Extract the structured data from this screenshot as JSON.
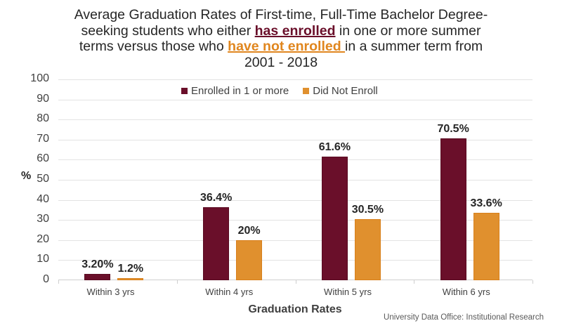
{
  "chart_data": {
    "type": "bar",
    "title": "Average Graduation Rates of First-time, Full-Time Bachelor Degree-seeking students who either has enrolled in one or more summer terms versus those who have not enrolled in a summer term from 2001 - 2018",
    "title_parts": {
      "line1": "Average Graduation Rates of First-time, Full-Time Bachelor Degree-",
      "line2_pre": "seeking students who either ",
      "line2_hl": "has enrolled",
      "line2_post": " in one or more summer",
      "line3_pre": "terms versus those who ",
      "line3_hl": "have not enrolled ",
      "line3_post": "in a summer term from",
      "line4": "2001 - 2018"
    },
    "xlabel": "Graduation Rates",
    "ylabel": "%",
    "ylim": [
      0,
      100
    ],
    "yticks": [
      "0",
      "10",
      "20",
      "30",
      "40",
      "50",
      "60",
      "70",
      "80",
      "90",
      "100"
    ],
    "grid": true,
    "legend_position": "top",
    "categories": [
      "Within 3 yrs",
      "Within 4 yrs",
      "Within 5 yrs",
      "Within 6 yrs"
    ],
    "series": [
      {
        "name": "Enrolled in 1 or more",
        "color": "#6a0f2a",
        "values": [
          3.2,
          36.4,
          61.6,
          70.5
        ],
        "labels": [
          "3.20%",
          "36.4%",
          "61.6%",
          "70.5%"
        ]
      },
      {
        "name": "Did Not Enroll",
        "color": "#e0902e",
        "values": [
          1.2,
          20,
          30.5,
          33.6
        ],
        "labels": [
          "1.2%",
          "20%",
          "30.5%",
          "33.6%"
        ]
      }
    ],
    "source": "University Data Office: Institutional Research"
  }
}
